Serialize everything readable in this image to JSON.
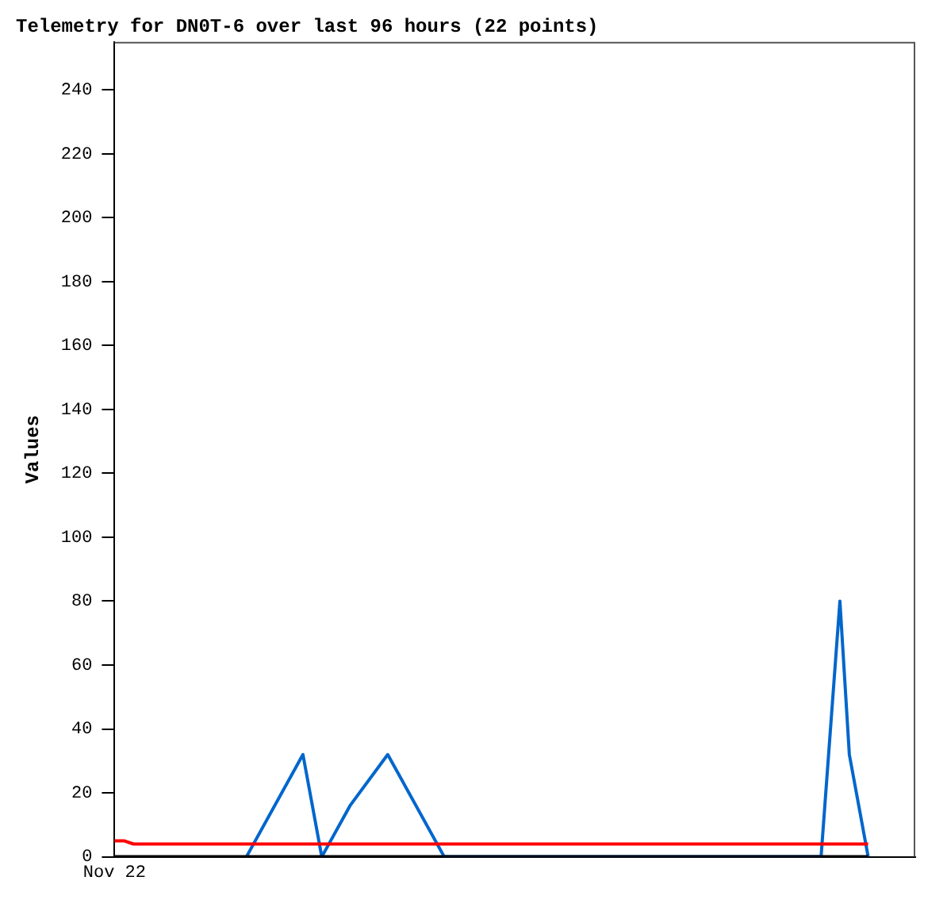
{
  "chart_data": {
    "type": "line",
    "title": "Telemetry for DN0T-6 over last 96 hours (22 points)",
    "ylabel": "Values",
    "categories": [
      "Nov 22",
      null,
      null,
      null,
      null,
      null,
      null,
      null,
      null,
      null,
      null,
      null,
      null,
      null,
      null,
      null,
      null,
      null,
      null,
      null,
      null,
      null,
      null,
      null,
      null,
      null,
      null,
      null,
      null,
      null,
      null,
      null,
      null,
      null,
      null,
      null,
      null,
      null,
      null,
      null,
      null,
      null,
      null,
      null,
      null,
      null,
      null,
      null,
      null,
      null,
      null,
      null,
      null,
      null,
      null,
      null,
      null,
      null,
      null,
      null,
      null,
      null,
      null,
      null,
      null,
      null,
      null,
      null,
      null,
      null,
      null,
      null,
      null,
      null,
      null,
      null,
      null,
      null,
      null,
      null,
      null,
      null,
      null,
      null,
      null,
      null
    ],
    "ylim": [
      0,
      255
    ],
    "yticks": [
      0,
      20,
      40,
      60,
      80,
      100,
      120,
      140,
      160,
      180,
      200,
      220,
      240
    ],
    "grid": false,
    "legend": false,
    "marker": "none",
    "line_style": "solid",
    "series": [
      {
        "color": "#000000",
        "values": [
          0,
          0,
          0,
          0,
          0,
          0,
          0,
          0,
          0,
          0,
          0,
          0,
          0,
          0,
          0,
          0,
          0,
          0,
          0,
          0,
          0,
          0,
          0,
          0,
          0,
          0,
          0,
          0,
          0,
          0,
          0,
          0,
          0,
          0,
          0,
          0,
          0,
          0,
          0,
          0,
          0,
          0,
          0,
          0,
          0,
          0,
          0,
          0,
          0,
          0,
          0,
          0,
          0,
          0,
          0,
          0,
          0,
          0,
          0,
          0,
          0,
          0,
          0,
          0,
          0,
          0,
          0,
          0,
          0,
          0,
          0,
          0,
          0,
          0,
          0,
          0,
          0,
          0,
          0,
          0,
          0,
          null,
          null,
          null,
          null,
          null
        ]
      },
      {
        "color": "#ff0000",
        "values": [
          5,
          5,
          4,
          4,
          4,
          4,
          4,
          4,
          4,
          4,
          4,
          4,
          4,
          4,
          4,
          4,
          4,
          4,
          4,
          4,
          4,
          4,
          4,
          4,
          4,
          4,
          4,
          4,
          4,
          4,
          4,
          4,
          4,
          4,
          4,
          4,
          4,
          4,
          4,
          4,
          4,
          4,
          4,
          4,
          4,
          4,
          4,
          4,
          4,
          4,
          4,
          4,
          4,
          4,
          4,
          4,
          4,
          4,
          4,
          4,
          4,
          4,
          4,
          4,
          4,
          4,
          4,
          4,
          4,
          4,
          4,
          4,
          4,
          4,
          4,
          4,
          4,
          4,
          4,
          4,
          4,
          null,
          null,
          null,
          null,
          null
        ]
      },
      {
        "color": "#0066cc",
        "values": [
          null,
          null,
          null,
          null,
          null,
          null,
          null,
          null,
          null,
          null,
          null,
          null,
          null,
          null,
          0,
          null,
          null,
          null,
          null,
          null,
          32,
          16,
          0,
          null,
          null,
          16,
          null,
          null,
          null,
          32,
          null,
          null,
          null,
          null,
          null,
          0,
          null,
          null,
          null,
          null,
          null,
          null,
          null,
          null,
          null,
          null,
          null,
          null,
          null,
          null,
          null,
          null,
          null,
          null,
          null,
          null,
          null,
          null,
          null,
          null,
          null,
          null,
          null,
          null,
          null,
          null,
          null,
          null,
          null,
          null,
          null,
          null,
          null,
          null,
          null,
          0,
          null,
          80,
          32,
          null,
          0,
          null,
          null,
          null,
          null,
          null
        ]
      }
    ]
  }
}
